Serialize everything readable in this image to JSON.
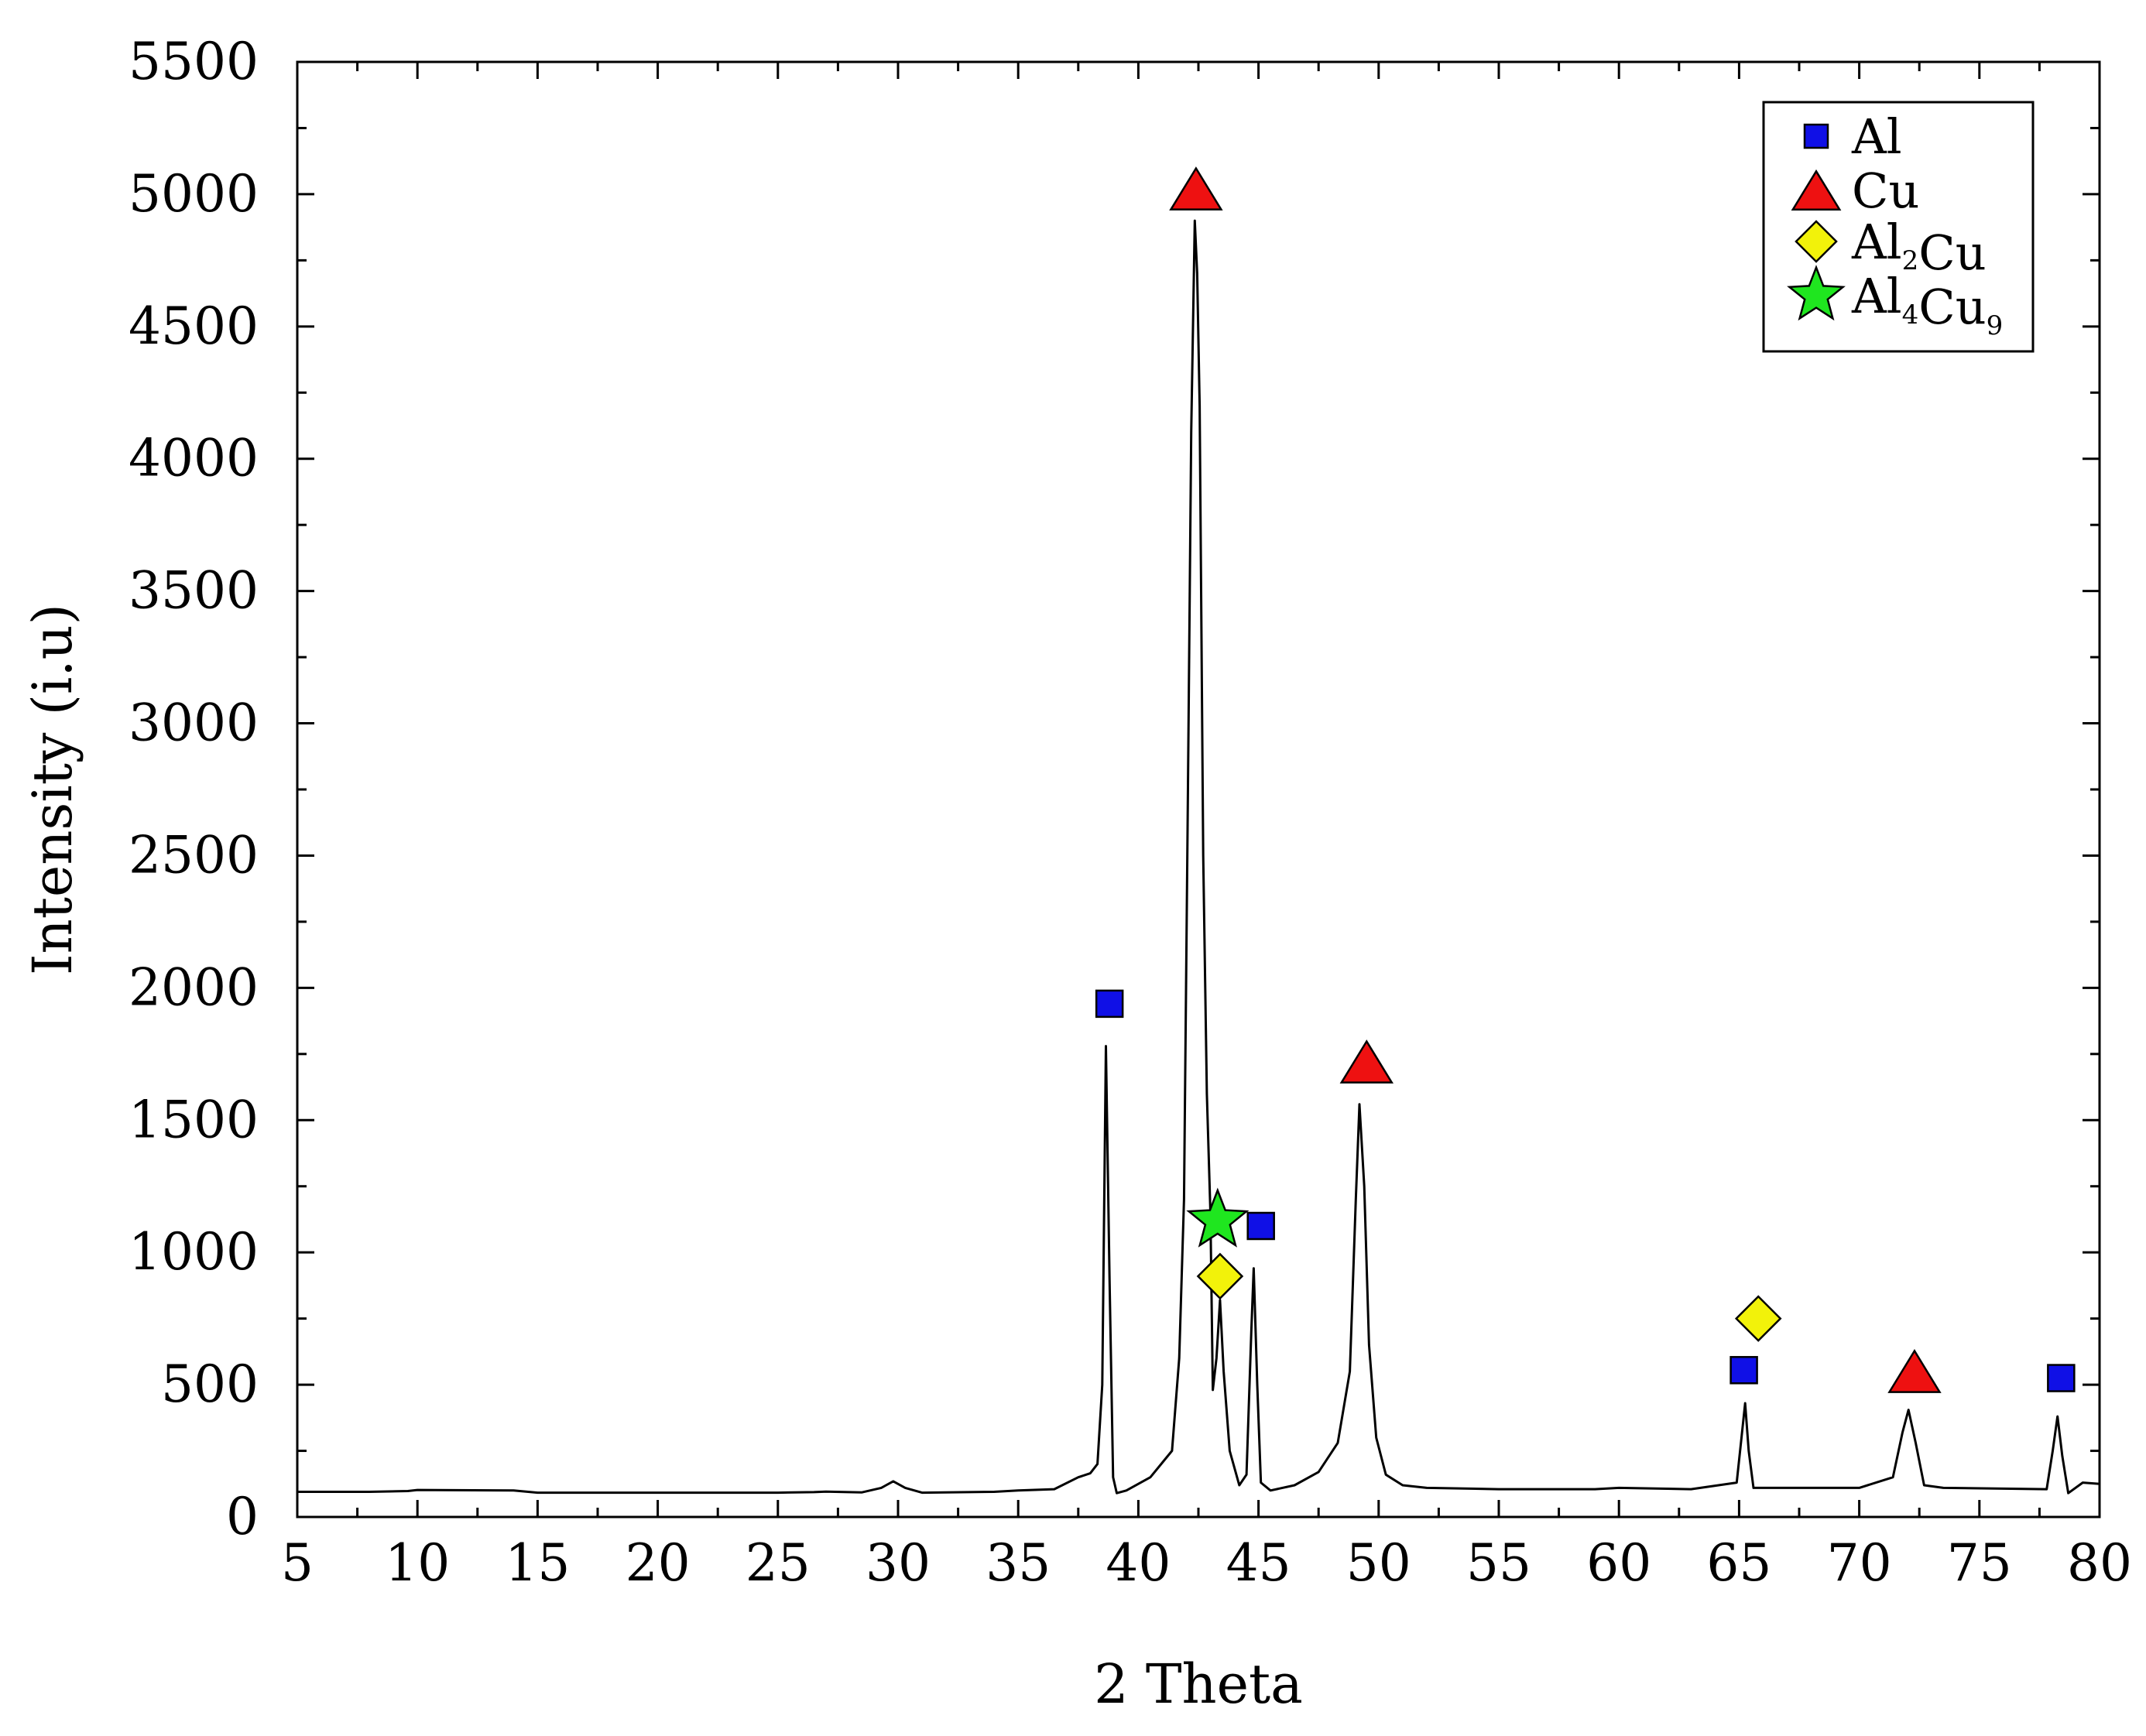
{
  "chart_data": {
    "type": "line",
    "title": "",
    "xlabel": "2 Theta",
    "ylabel": "Intensity (i.u)",
    "xlim": [
      5,
      80
    ],
    "ylim": [
      0,
      5500
    ],
    "x_ticks": [
      5,
      10,
      15,
      20,
      25,
      30,
      35,
      40,
      45,
      50,
      55,
      60,
      65,
      70,
      75,
      80
    ],
    "x_tick_labels": [
      "5",
      "10",
      "15",
      "20",
      "25",
      "30",
      "35",
      "40",
      "45",
      "50",
      "55",
      "60",
      "65",
      "70",
      "75",
      "80"
    ],
    "y_ticks": [
      0,
      500,
      1000,
      1500,
      2000,
      2500,
      3000,
      3500,
      4000,
      4500,
      5000,
      5500
    ],
    "y_tick_labels": [
      "0",
      "500",
      "1000",
      "1500",
      "2000",
      "2500",
      "3000",
      "3500",
      "4000",
      "4500",
      "5000",
      "5500"
    ],
    "grid": false,
    "legend_position": "top-right",
    "series": [
      {
        "color": "#000000",
        "points": [
          [
            5,
            95
          ],
          [
            8,
            95
          ],
          [
            9.6,
            98
          ],
          [
            10,
            102
          ],
          [
            14,
            100
          ],
          [
            15,
            92
          ],
          [
            20,
            92
          ],
          [
            25,
            92
          ],
          [
            26.5,
            94
          ],
          [
            27,
            96
          ],
          [
            28.5,
            93
          ],
          [
            29.3,
            110
          ],
          [
            29.8,
            135
          ],
          [
            30.3,
            110
          ],
          [
            31,
            92
          ],
          [
            34,
            95
          ],
          [
            35,
            100
          ],
          [
            36.5,
            105
          ],
          [
            37.5,
            150
          ],
          [
            38,
            165
          ],
          [
            38.3,
            200
          ],
          [
            38.5,
            500
          ],
          [
            38.65,
            1780
          ],
          [
            38.8,
            900
          ],
          [
            38.95,
            150
          ],
          [
            39.1,
            90
          ],
          [
            39.5,
            100
          ],
          [
            40.5,
            150
          ],
          [
            41.4,
            250
          ],
          [
            41.7,
            600
          ],
          [
            41.9,
            1200
          ],
          [
            42.05,
            2600
          ],
          [
            42.2,
            4100
          ],
          [
            42.35,
            4900
          ],
          [
            42.45,
            4700
          ],
          [
            42.55,
            4200
          ],
          [
            42.7,
            2500
          ],
          [
            42.85,
            1600
          ],
          [
            43.0,
            1150
          ],
          [
            43.1,
            480
          ],
          [
            43.25,
            600
          ],
          [
            43.4,
            820
          ],
          [
            43.55,
            550
          ],
          [
            43.8,
            250
          ],
          [
            44.2,
            120
          ],
          [
            44.5,
            160
          ],
          [
            44.7,
            700
          ],
          [
            44.8,
            940
          ],
          [
            44.95,
            500
          ],
          [
            45.1,
            130
          ],
          [
            45.5,
            100
          ],
          [
            46.5,
            120
          ],
          [
            47.5,
            170
          ],
          [
            48.3,
            280
          ],
          [
            48.8,
            550
          ],
          [
            49.05,
            1200
          ],
          [
            49.2,
            1560
          ],
          [
            49.4,
            1250
          ],
          [
            49.6,
            650
          ],
          [
            49.9,
            300
          ],
          [
            50.3,
            160
          ],
          [
            51,
            120
          ],
          [
            52,
            110
          ],
          [
            55,
            105
          ],
          [
            59,
            105
          ],
          [
            60,
            110
          ],
          [
            63,
            105
          ],
          [
            64.9,
            130
          ],
          [
            65.1,
            300
          ],
          [
            65.25,
            430
          ],
          [
            65.4,
            250
          ],
          [
            65.6,
            110
          ],
          [
            66,
            110
          ],
          [
            70,
            110
          ],
          [
            71.4,
            150
          ],
          [
            71.8,
            320
          ],
          [
            72.05,
            405
          ],
          [
            72.35,
            280
          ],
          [
            72.7,
            120
          ],
          [
            73.5,
            110
          ],
          [
            77.8,
            105
          ],
          [
            78.05,
            250
          ],
          [
            78.25,
            380
          ],
          [
            78.45,
            230
          ],
          [
            78.7,
            90
          ],
          [
            79.3,
            130
          ],
          [
            80,
            125
          ]
        ]
      }
    ],
    "legend": [
      {
        "symbol": "square",
        "color": "#1010e6",
        "label": "Al",
        "sub": []
      },
      {
        "symbol": "triangle",
        "color": "#ee1111",
        "label": "Cu",
        "sub": []
      },
      {
        "symbol": "diamond",
        "color": "#f2f20a",
        "label": "Al2Cu",
        "sub": [
          "2"
        ]
      },
      {
        "symbol": "star",
        "color": "#1fe61f",
        "label": "Al4Cu9",
        "sub": [
          "4",
          "9"
        ]
      }
    ],
    "markers": [
      {
        "phase": "Al",
        "symbol": "square",
        "x": 38.8,
        "y": 1940
      },
      {
        "phase": "Cu",
        "symbol": "triangle",
        "x": 42.4,
        "y": 5020
      },
      {
        "phase": "Al4Cu9",
        "symbol": "star",
        "x": 43.3,
        "y": 1120
      },
      {
        "phase": "Al2Cu",
        "symbol": "diamond",
        "x": 43.4,
        "y": 910
      },
      {
        "phase": "Al",
        "symbol": "square",
        "x": 45.1,
        "y": 1100
      },
      {
        "phase": "Cu",
        "symbol": "triangle",
        "x": 49.5,
        "y": 1720
      },
      {
        "phase": "Al2Cu",
        "symbol": "diamond",
        "x": 65.8,
        "y": 750
      },
      {
        "phase": "Al",
        "symbol": "square",
        "x": 65.2,
        "y": 555
      },
      {
        "phase": "Cu",
        "symbol": "triangle",
        "x": 72.3,
        "y": 550
      },
      {
        "phase": "Al",
        "symbol": "square",
        "x": 78.4,
        "y": 525
      }
    ]
  }
}
